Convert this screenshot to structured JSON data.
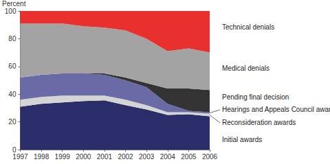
{
  "chart_data": {
    "type": "area",
    "stacked": true,
    "y_label": "Percent",
    "categories": [
      "1997",
      "1998",
      "1999",
      "2000",
      "2001",
      "2002",
      "2003",
      "2004",
      "2005",
      "2006"
    ],
    "series": [
      {
        "name": "Initial awards",
        "color": "#2b2d6b",
        "values": [
          31,
          33,
          34,
          35,
          35.5,
          32,
          29,
          25,
          25.5,
          24
        ]
      },
      {
        "name": "Reconsideration awards",
        "color": "#d4d4d4",
        "values": [
          5,
          5,
          5,
          4,
          3.5,
          4,
          3,
          2,
          1.5,
          2
        ]
      },
      {
        "name": "Hearings and Appeals Council awards",
        "color": "#6a6aa6",
        "values": [
          16,
          16,
          16,
          16,
          15,
          14,
          13,
          6,
          1,
          1
        ]
      },
      {
        "name": "Pending final decision",
        "color": "#333333",
        "values": [
          0,
          0,
          0,
          0,
          1,
          2,
          3,
          11,
          16,
          16
        ]
      },
      {
        "name": "Medical denials",
        "color": "#a3a3a3",
        "values": [
          39,
          37,
          36,
          34,
          33,
          34,
          32,
          27,
          29,
          27
        ]
      },
      {
        "name": "Technical denials",
        "color": "#e8302e",
        "values": [
          9,
          9,
          9,
          11,
          12,
          14,
          20,
          29,
          27,
          30
        ]
      }
    ],
    "ylim": [
      0,
      100
    ],
    "yticks": [
      0,
      20,
      40,
      60,
      80,
      100
    ],
    "grid": false
  }
}
